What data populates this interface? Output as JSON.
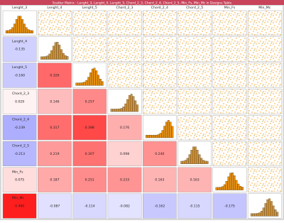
{
  "window": {
    "title": "Scatter Matrix : Lenght_3, Lenght_4, Lenght_5, Chord_2_3, Chord_2_4, Chord_2_5, Min_Fs, Min_Mc in Designs Table"
  },
  "variables": [
    "Lenght_3",
    "Lenght_4",
    "Lenght_5",
    "Chord_2_3",
    "Chord_2_4",
    "Chord_2_5",
    "Min_Fs",
    "Min_Mc"
  ],
  "correlations": [
    [],
    [
      "-0.135"
    ],
    [
      "-0.160",
      "0.326"
    ],
    [
      "0.029",
      "0.146",
      "0.257"
    ],
    [
      "-0.239",
      "0.317",
      "0.398",
      "0.176"
    ],
    [
      "-0.213",
      "0.219",
      "0.307",
      "0.098",
      "0.240"
    ],
    [
      "0.075",
      "0.187",
      "0.251",
      "0.233",
      "0.163",
      "0.163"
    ],
    [
      "0.490",
      "-0.087",
      "-0.114",
      "-0.082",
      "-0.162",
      "-0.115",
      "-0.175"
    ]
  ]
}
